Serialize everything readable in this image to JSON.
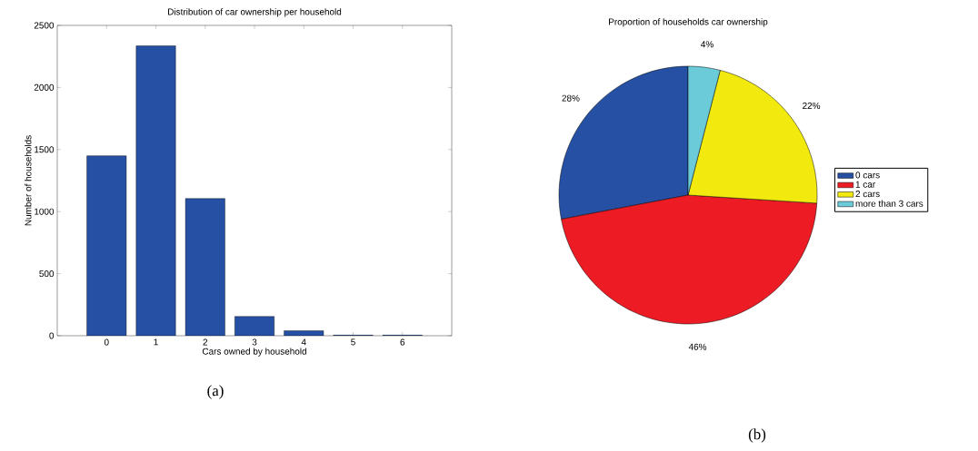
{
  "chart_data": [
    {
      "type": "bar",
      "title": "Distribution of car ownership per household",
      "xlabel": "Cars owned by household",
      "ylabel": "Number of households",
      "categories": [
        "0",
        "1",
        "2",
        "3",
        "4",
        "5",
        "6"
      ],
      "values": [
        1450,
        2335,
        1105,
        155,
        40,
        5,
        5
      ],
      "color": "#2550a3",
      "ylim": [
        0,
        2500
      ],
      "yticks": [
        0,
        500,
        1000,
        1500,
        2000,
        2500
      ],
      "grid": false,
      "annotations": [
        "(a)"
      ]
    },
    {
      "type": "pie",
      "title": "Proportion of households car ownership",
      "categories": [
        "0 cars",
        "1 car",
        "2 cars",
        "more than 3 cars"
      ],
      "values": [
        28,
        46,
        22,
        4
      ],
      "value_labels": [
        "28%",
        "46%",
        "22%",
        "4%"
      ],
      "colors": [
        "#2550a3",
        "#ed1c24",
        "#f2ea0f",
        "#6bcbd9"
      ],
      "legend": "right",
      "annotations": [
        "(b)"
      ]
    }
  ]
}
